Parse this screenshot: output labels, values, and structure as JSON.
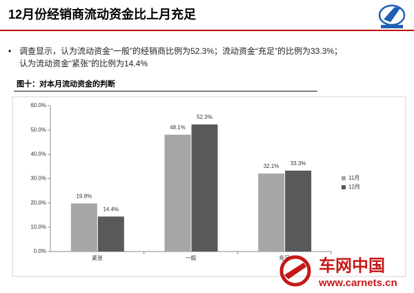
{
  "header": {
    "title": "12月份经销商流动资金比上月充足"
  },
  "bullet": {
    "lines": [
      "调查显示，认为流动资金“一般”的经销商比例为52.3%；流动资金“充足”的比例为33.3%；",
      "认为流动资金“紧张”的比例为14.4%"
    ]
  },
  "figure_caption": "图十：对本月流动资金的判断",
  "watermark": {
    "name": "车网中国",
    "url": "www.carnets.cn"
  },
  "chart_data": {
    "type": "bar",
    "categories": [
      "紧张",
      "一般",
      "充足"
    ],
    "series": [
      {
        "name": "11月",
        "color": "#a6a6a6",
        "values": [
          19.8,
          48.1,
          32.1
        ],
        "value_labels": [
          "19.8%",
          "48.1%",
          "32.1%"
        ]
      },
      {
        "name": "12月",
        "color": "#595959",
        "values": [
          14.4,
          52.3,
          33.3
        ],
        "value_labels": [
          "14.4%",
          "52.3%",
          "33.3%"
        ]
      }
    ],
    "ylim": [
      0,
      60
    ],
    "yticks": [
      {
        "value": 0,
        "label": "0.0%"
      },
      {
        "value": 10,
        "label": "10.0%"
      },
      {
        "value": 20,
        "label": "20.0%"
      },
      {
        "value": 30,
        "label": "30.0%"
      },
      {
        "value": 40,
        "label": "40.0%"
      },
      {
        "value": 50,
        "label": "50.0%"
      },
      {
        "value": 60,
        "label": "60.0%"
      }
    ],
    "legend_position": "right"
  }
}
